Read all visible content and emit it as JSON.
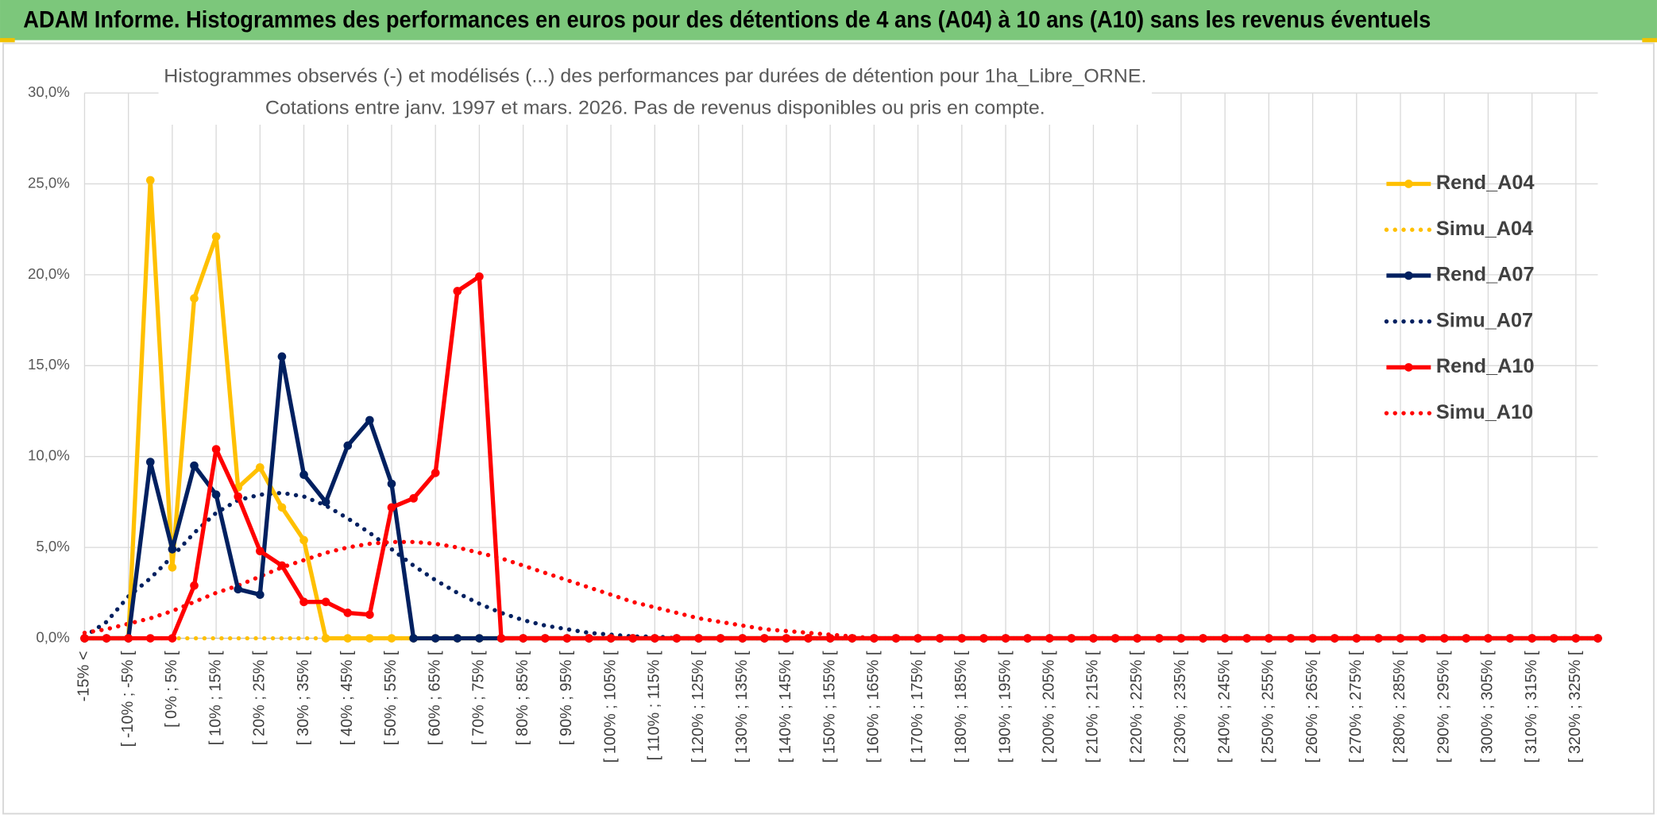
{
  "header": {
    "title": "ADAM Informe. Histogrammes des performances en euros pour des détentions de 4 ans (A04) à 10 ans (A10) sans les revenus éventuels"
  },
  "chart_data": {
    "type": "line",
    "title": [
      "Histogrammes observés (-) et modélisés (...) des performances par durées de détention pour 1ha_Libre_ORNE.",
      "Cotations entre janv. 1997 et mars. 2026. Pas de revenus disponibles ou pris en compte."
    ],
    "categories": [
      "-15% <",
      null,
      "[ -10% ; -5% [",
      null,
      "[ 0% ; 5% [",
      null,
      "[ 10% ; 15% [",
      null,
      "[ 20% ; 25% [",
      null,
      "[ 30% ; 35% [",
      null,
      "[ 40% ; 45% [",
      null,
      "[ 50% ; 55% [",
      null,
      "[ 60% ; 65% [",
      null,
      "[ 70% ; 75% [",
      null,
      "[ 80% ; 85% [",
      null,
      "[ 90% ; 95% [",
      null,
      "[ 100% ; 105% [",
      null,
      "[ 110% ; 115% [",
      null,
      "[ 120% ; 125% [",
      null,
      "[ 130% ; 135% [",
      null,
      "[ 140% ; 145% [",
      null,
      "[ 150% ; 155% [",
      null,
      "[ 160% ; 165% [",
      null,
      "[ 170% ; 175% [",
      null,
      "[ 180% ; 185% [",
      null,
      "[ 190% ; 195% [",
      null,
      "[ 200% ; 205% [",
      null,
      "[ 210% ; 215% [",
      null,
      "[ 220% ; 225% [",
      null,
      "[ 230% ; 235% [",
      null,
      "[ 240% ; 245% [",
      null,
      "[ 250% ; 255% [",
      null,
      "[ 260% ; 265% [",
      null,
      "[ 270% ; 275% [",
      null,
      "[ 280% ; 285% [",
      null,
      "[ 290% ; 295% [",
      null,
      "[ 300% ; 305% [",
      null,
      "[ 310% ; 315% [",
      null,
      "[ 320% ; 325% [",
      null
    ],
    "series": [
      {
        "name": "Rend_A04",
        "color": "#ffc000",
        "style": "solid",
        "markers": true,
        "values": [
          0,
          0,
          0,
          25.2,
          3.9,
          18.7,
          22.1,
          8.3,
          9.4,
          7.2,
          5.4,
          0,
          0,
          0,
          0,
          0,
          0,
          0,
          0,
          0,
          0,
          0,
          0,
          0,
          0,
          0,
          0,
          0,
          0,
          0,
          0,
          0,
          0,
          0,
          0,
          0,
          0,
          0,
          0,
          0,
          0,
          0,
          0,
          0,
          0,
          0,
          0,
          0,
          0,
          0,
          0,
          0,
          0,
          0,
          0,
          0,
          0,
          0,
          0,
          0,
          0,
          0,
          0,
          0,
          0,
          0,
          0,
          0,
          0,
          0
        ]
      },
      {
        "name": "Simu_A04",
        "color": "#ffc000",
        "style": "dotted",
        "markers": false,
        "values": [
          0,
          0,
          0,
          0,
          0,
          0,
          0,
          0,
          0,
          0,
          0,
          0,
          0,
          0,
          0,
          0,
          0,
          0,
          0,
          0,
          0,
          0,
          0,
          0,
          0,
          0,
          0,
          0,
          0,
          0,
          0,
          0,
          0,
          0,
          0,
          0,
          0,
          0,
          0,
          0,
          0,
          0,
          0,
          0,
          0,
          0,
          0,
          0,
          0,
          0,
          0,
          0,
          0,
          0,
          0,
          0,
          0,
          0,
          0,
          0,
          0,
          0,
          0,
          0,
          0,
          0,
          0,
          0,
          0,
          0
        ]
      },
      {
        "name": "Rend_A07",
        "color": "#002060",
        "style": "solid",
        "markers": true,
        "values": [
          0,
          0,
          0,
          9.7,
          4.9,
          9.5,
          7.9,
          2.7,
          2.4,
          15.5,
          9.0,
          7.5,
          10.6,
          12.0,
          8.5,
          0,
          0,
          0,
          0,
          0,
          0,
          0,
          0,
          0,
          0,
          0,
          0,
          0,
          0,
          0,
          0,
          0,
          0,
          0,
          0,
          0,
          0,
          0,
          0,
          0,
          0,
          0,
          0,
          0,
          0,
          0,
          0,
          0,
          0,
          0,
          0,
          0,
          0,
          0,
          0,
          0,
          0,
          0,
          0,
          0,
          0,
          0,
          0,
          0,
          0,
          0,
          0,
          0,
          0,
          0
        ]
      },
      {
        "name": "Simu_A07",
        "color": "#002060",
        "style": "dotted",
        "markers": false,
        "values": [
          0.1,
          0.9,
          2.3,
          3.3,
          4.5,
          5.8,
          6.9,
          7.6,
          7.9,
          8.0,
          7.8,
          7.3,
          6.6,
          5.8,
          4.9,
          4.0,
          3.2,
          2.5,
          1.9,
          1.4,
          1.0,
          0.7,
          0.5,
          0.3,
          0.2,
          0.1,
          0.1,
          0,
          0,
          0,
          0,
          0,
          0,
          0,
          0,
          0,
          0,
          0,
          0,
          0,
          0,
          0,
          0,
          0,
          0,
          0,
          0,
          0,
          0,
          0,
          0,
          0,
          0,
          0,
          0,
          0,
          0,
          0,
          0,
          0,
          0,
          0,
          0,
          0,
          0,
          0,
          0,
          0,
          0,
          0
        ]
      },
      {
        "name": "Rend_A10",
        "color": "#ff0000",
        "style": "solid",
        "markers": true,
        "values": [
          0,
          0,
          0,
          0,
          0,
          2.9,
          10.4,
          7.8,
          4.8,
          4.0,
          2.0,
          2.0,
          1.4,
          1.3,
          7.2,
          7.7,
          9.1,
          19.1,
          19.9,
          0,
          0,
          0,
          0,
          0,
          0,
          0,
          0,
          0,
          0,
          0,
          0,
          0,
          0,
          0,
          0,
          0,
          0,
          0,
          0,
          0,
          0,
          0,
          0,
          0,
          0,
          0,
          0,
          0,
          0,
          0,
          0,
          0,
          0,
          0,
          0,
          0,
          0,
          0,
          0,
          0,
          0,
          0,
          0,
          0,
          0,
          0,
          0,
          0,
          0,
          0
        ]
      },
      {
        "name": "Simu_A10",
        "color": "#ff0000",
        "style": "dotted",
        "markers": false,
        "values": [
          0.3,
          0.5,
          0.8,
          1.1,
          1.5,
          2.0,
          2.5,
          2.9,
          3.4,
          3.9,
          4.3,
          4.7,
          5.0,
          5.2,
          5.3,
          5.3,
          5.2,
          5.0,
          4.7,
          4.4,
          4.0,
          3.6,
          3.2,
          2.8,
          2.4,
          2.0,
          1.7,
          1.4,
          1.1,
          0.9,
          0.7,
          0.5,
          0.4,
          0.3,
          0.2,
          0.1,
          0,
          0,
          0,
          0,
          0,
          0,
          0,
          0,
          0,
          0,
          0,
          0,
          0,
          0,
          0,
          0,
          0,
          0,
          0,
          0,
          0,
          0,
          0,
          0,
          0,
          0,
          0,
          0,
          0,
          0,
          0,
          0,
          0,
          0
        ]
      }
    ],
    "ylim": [
      0,
      30
    ],
    "yticks": [
      {
        "value": 0,
        "label": "0,0%"
      },
      {
        "value": 5,
        "label": "5,0%"
      },
      {
        "value": 10,
        "label": "10,0%"
      },
      {
        "value": 15,
        "label": "15,0%"
      },
      {
        "value": 20,
        "label": "20,0%"
      },
      {
        "value": 25,
        "label": "25,0%"
      },
      {
        "value": 30,
        "label": "30,0%"
      }
    ],
    "grid": true,
    "legend": "right"
  }
}
